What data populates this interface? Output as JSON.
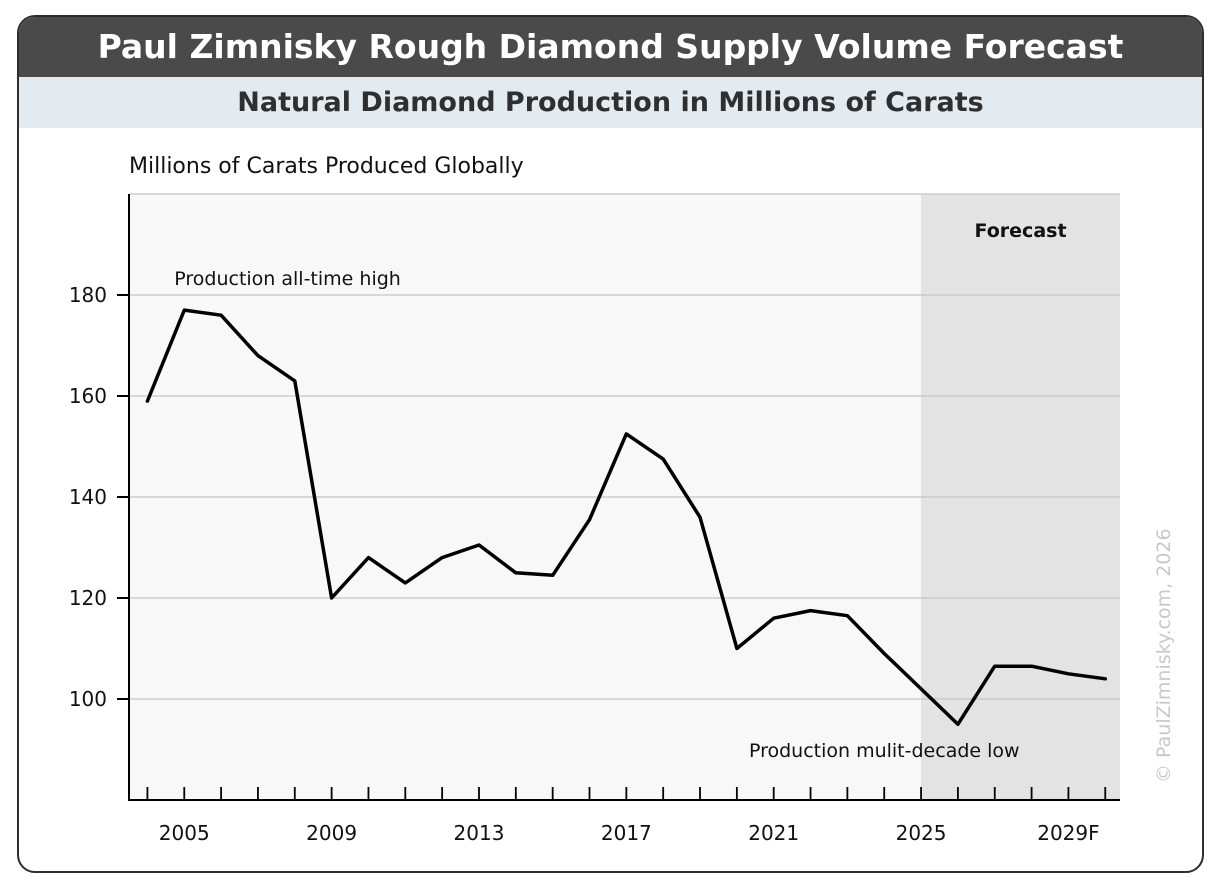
{
  "chart_data": {
    "type": "line",
    "title": "Paul Zimnisky Rough Diamond Supply Volume Forecast",
    "subtitle": "Natural Diamond Production in Millions of Carats",
    "ylabel": "Millions of Carats Produced Globally",
    "xlabel": "",
    "ylim": [
      80,
      200
    ],
    "xlim": [
      2003.5,
      2030.4
    ],
    "yticks": [
      100,
      120,
      140,
      160,
      180
    ],
    "xticks": [
      {
        "value": 2005,
        "label": "2005"
      },
      {
        "value": 2009,
        "label": "2009"
      },
      {
        "value": 2013,
        "label": "2013"
      },
      {
        "value": 2017,
        "label": "2017"
      },
      {
        "value": 2021,
        "label": "2021"
      },
      {
        "value": 2025,
        "label": "2025"
      },
      {
        "value": 2029,
        "label": "2029F"
      }
    ],
    "grid": true,
    "forecast_region": {
      "start": 2025,
      "end": 2030.4,
      "label": "Forecast"
    },
    "annotations": [
      {
        "text": "Production all-time high",
        "x": 2005,
        "y": 183
      },
      {
        "text": "Production mulit-decade low",
        "x": 2020.6,
        "y": 89.5
      }
    ],
    "copyright": "© PaulZimnisky.com, 2026",
    "series": [
      {
        "x": [
          2004,
          2005,
          2006,
          2007,
          2008,
          2009,
          2010,
          2011,
          2012,
          2013,
          2014,
          2015,
          2016,
          2017,
          2018,
          2019,
          2020,
          2021,
          2022,
          2023,
          2024,
          2025,
          2026,
          2027,
          2028,
          2029,
          2030
        ],
        "values": [
          159,
          177,
          176,
          168,
          163,
          120,
          128,
          123,
          128,
          130.5,
          125,
          124.5,
          135.5,
          152.5,
          147.5,
          136,
          110,
          116,
          117.5,
          116.5,
          109,
          102,
          95,
          106.5,
          106.5,
          105,
          104
        ]
      }
    ],
    "colors": {
      "line": "#000000",
      "forecast_bg": "#e3e3e3",
      "plot_bg": "#f8f8f8",
      "grid": "#c4c4c4"
    }
  }
}
